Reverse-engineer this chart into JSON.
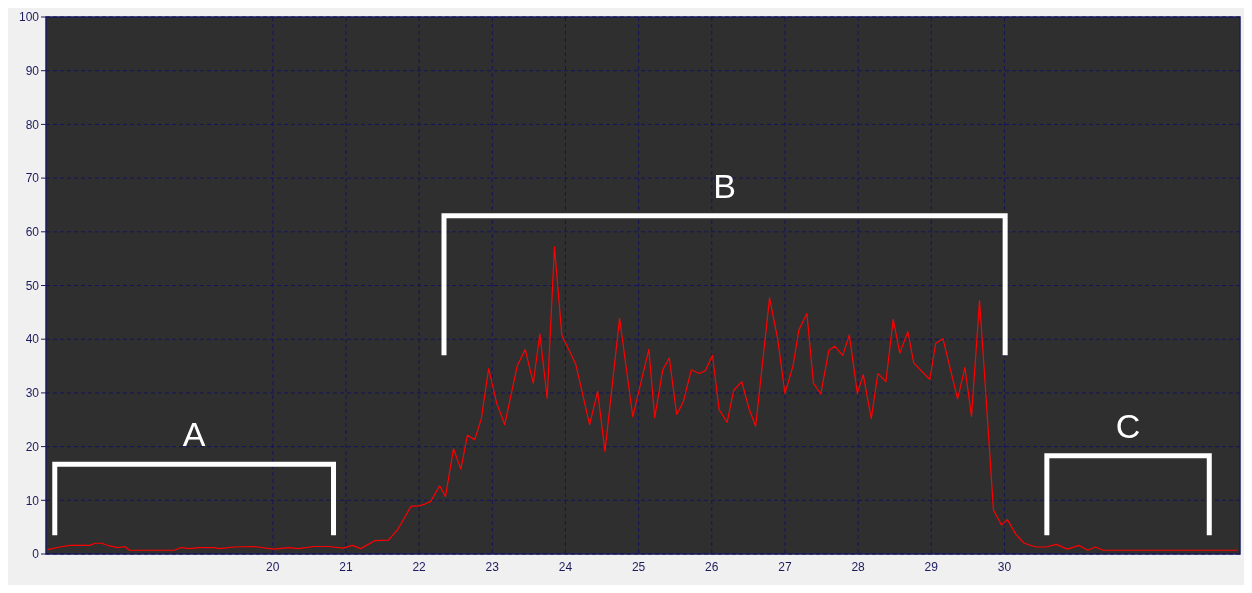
{
  "chart_data": {
    "type": "line",
    "x": [
      16.92,
      17.09,
      17.23,
      17.5,
      17.57,
      17.66,
      17.77,
      17.88,
      17.98,
      18.04,
      18.65,
      18.75,
      18.86,
      18.99,
      19.2,
      19.27,
      19.47,
      19.74,
      20.01,
      20.22,
      20.35,
      20.56,
      20.76,
      20.96,
      21.09,
      21.2,
      21.4,
      21.58,
      21.71,
      21.78,
      21.89,
      21.98,
      22.08,
      22.16,
      22.28,
      22.36,
      22.47,
      22.57,
      22.66,
      22.76,
      22.85,
      22.95,
      23.06,
      23.17,
      23.34,
      23.45,
      23.56,
      23.65,
      23.75,
      23.85,
      23.95,
      24.14,
      24.33,
      24.44,
      24.54,
      24.74,
      24.92,
      25.14,
      25.22,
      25.33,
      25.42,
      25.52,
      25.61,
      25.72,
      25.83,
      25.91,
      26.01,
      26.1,
      26.21,
      26.3,
      26.41,
      26.51,
      26.6,
      26.79,
      26.9,
      27.0,
      27.11,
      27.19,
      27.3,
      27.39,
      27.49,
      27.6,
      27.68,
      27.79,
      27.88,
      27.99,
      28.07,
      28.18,
      28.27,
      28.38,
      28.48,
      28.57,
      28.68,
      28.76,
      28.98,
      29.06,
      29.16,
      29.36,
      29.46,
      29.55,
      29.66,
      29.76,
      29.85,
      29.96,
      30.04,
      30.16,
      30.27,
      30.43,
      30.57,
      30.71,
      30.86,
      31.02,
      31.14,
      31.24,
      31.35,
      31.49,
      33.19
    ],
    "series": [
      {
        "color": "#ff0000",
        "values": [
          0.8,
          1.3,
          1.6,
          1.6,
          2.0,
          2.0,
          1.5,
          1.2,
          1.4,
          0.7,
          0.7,
          1.2,
          1.0,
          1.2,
          1.2,
          1.0,
          1.3,
          1.4,
          0.9,
          1.2,
          1.0,
          1.4,
          1.4,
          1.1,
          1.6,
          1.0,
          2.5,
          2.6,
          4.6,
          6.3,
          8.9,
          8.9,
          9.3,
          9.8,
          12.7,
          10.7,
          19.6,
          15.8,
          22.1,
          21.3,
          25.2,
          34.5,
          28.1,
          24.1,
          35.0,
          38.1,
          31.8,
          41.0,
          29.0,
          57.2,
          40.8,
          35.4,
          24.1,
          30.3,
          19.1,
          43.9,
          25.6,
          38.1,
          25.4,
          34.3,
          36.5,
          26.0,
          28.3,
          34.3,
          33.6,
          34.1,
          37.0,
          26.9,
          24.5,
          30.5,
          32.1,
          27.0,
          23.8,
          47.7,
          40.1,
          29.9,
          35.0,
          41.7,
          44.8,
          31.8,
          29.8,
          37.9,
          38.7,
          37.0,
          40.8,
          29.9,
          33.4,
          25.2,
          33.6,
          32.1,
          43.7,
          37.4,
          41.4,
          35.6,
          32.5,
          39.2,
          40.1,
          28.9,
          34.7,
          25.6,
          47.2,
          26.9,
          8.2,
          5.4,
          6.4,
          3.6,
          2.0,
          1.3,
          1.3,
          1.8,
          0.9,
          1.6,
          0.7,
          1.3,
          0.7,
          0.7,
          0.7
        ]
      }
    ],
    "xlim": [
      16.9,
      33.22
    ],
    "xticks": [
      20,
      21,
      22,
      23,
      24,
      25,
      26,
      27,
      28,
      29,
      30
    ],
    "ylim": [
      0,
      100
    ],
    "yticks": [
      0,
      10,
      20,
      30,
      40,
      50,
      60,
      70,
      80,
      90,
      100
    ],
    "grid": true,
    "marker": "none",
    "line_style": "solid",
    "annotations": [
      "A",
      "B",
      "C"
    ]
  }
}
